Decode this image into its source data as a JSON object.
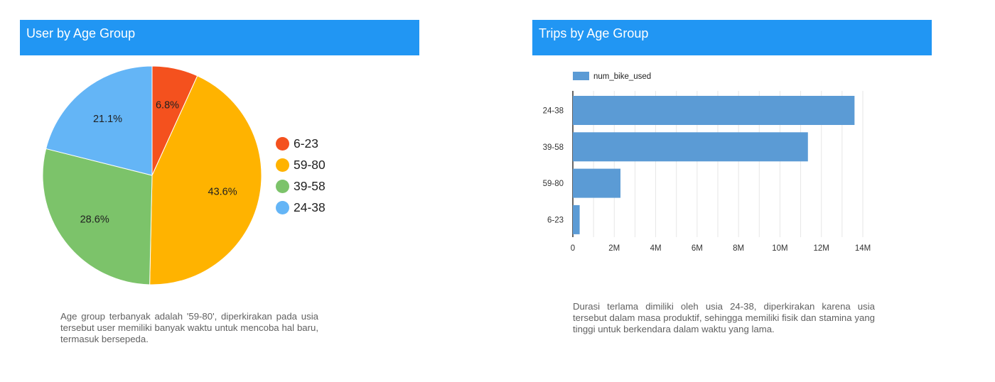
{
  "left_panel": {
    "title": "User by Age Group",
    "description": "Age group terbanyak adalah '59-80', diperkirakan pada usia tersebut user memiliki banyak waktu untuk mencoba hal baru, termasuk bersepeda."
  },
  "right_panel": {
    "title": "Trips by Age Group",
    "description": "Durasi terlama dimiliki oleh usia 24-38, diperkirakan karena usia tersebut dalam masa produktif, sehingga memiliki fisik dan stamina yang tinggi untuk berkendara dalam waktu yang lama."
  },
  "chart_data": [
    {
      "type": "pie",
      "title": "User by Age Group",
      "slices": [
        {
          "label": "6-23",
          "value": 6.8,
          "display": "6.8%",
          "color": "#f4511e"
        },
        {
          "label": "59-80",
          "value": 43.6,
          "display": "43.6%",
          "color": "#ffb300"
        },
        {
          "label": "39-58",
          "value": 28.6,
          "display": "28.6%",
          "color": "#7cc36a"
        },
        {
          "label": "24-38",
          "value": 21.1,
          "display": "21.1%",
          "color": "#64b5f6"
        }
      ],
      "legend_position": "right"
    },
    {
      "type": "bar",
      "orientation": "horizontal",
      "title": "Trips by Age Group",
      "categories": [
        "24-38",
        "39-58",
        "59-80",
        "6-23"
      ],
      "series": [
        {
          "name": "num_bike_used",
          "values": [
            13600000,
            11350000,
            2300000,
            330000
          ],
          "color": "#5b9bd5"
        }
      ],
      "xlim": [
        0,
        14000000
      ],
      "x_ticks": [
        0,
        2000000,
        4000000,
        6000000,
        8000000,
        10000000,
        12000000,
        14000000
      ],
      "x_tick_labels": [
        "0",
        "2M",
        "4M",
        "6M",
        "8M",
        "10M",
        "12M",
        "14M"
      ],
      "grid": true,
      "legend_position": "top-left"
    }
  ]
}
